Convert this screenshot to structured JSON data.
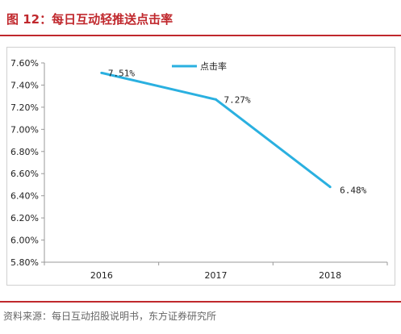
{
  "figure": {
    "title": "图 12：每日互动轻推送点击率",
    "source": "资料来源：每日互动招股说明书，东方证券研究所"
  },
  "colors": {
    "accent": "#c0282d",
    "line": "#2ab0e0"
  },
  "chart_data": {
    "type": "line",
    "categories": [
      "2016",
      "2017",
      "2018"
    ],
    "series": [
      {
        "name": "点击率",
        "values": [
          7.51,
          7.27,
          6.48
        ],
        "labels": [
          "7.51%",
          "7.27%",
          "6.48%"
        ]
      }
    ],
    "ylim": [
      5.8,
      7.6
    ],
    "yticks": [
      5.8,
      6.0,
      6.2,
      6.4,
      6.6,
      6.8,
      7.0,
      7.2,
      7.4,
      7.6
    ],
    "ytick_labels": [
      "5.80%",
      "6.00%",
      "6.20%",
      "6.40%",
      "6.60%",
      "6.80%",
      "7.00%",
      "7.20%",
      "7.40%",
      "7.60%"
    ],
    "legend_position": "top-center",
    "grid": false
  }
}
